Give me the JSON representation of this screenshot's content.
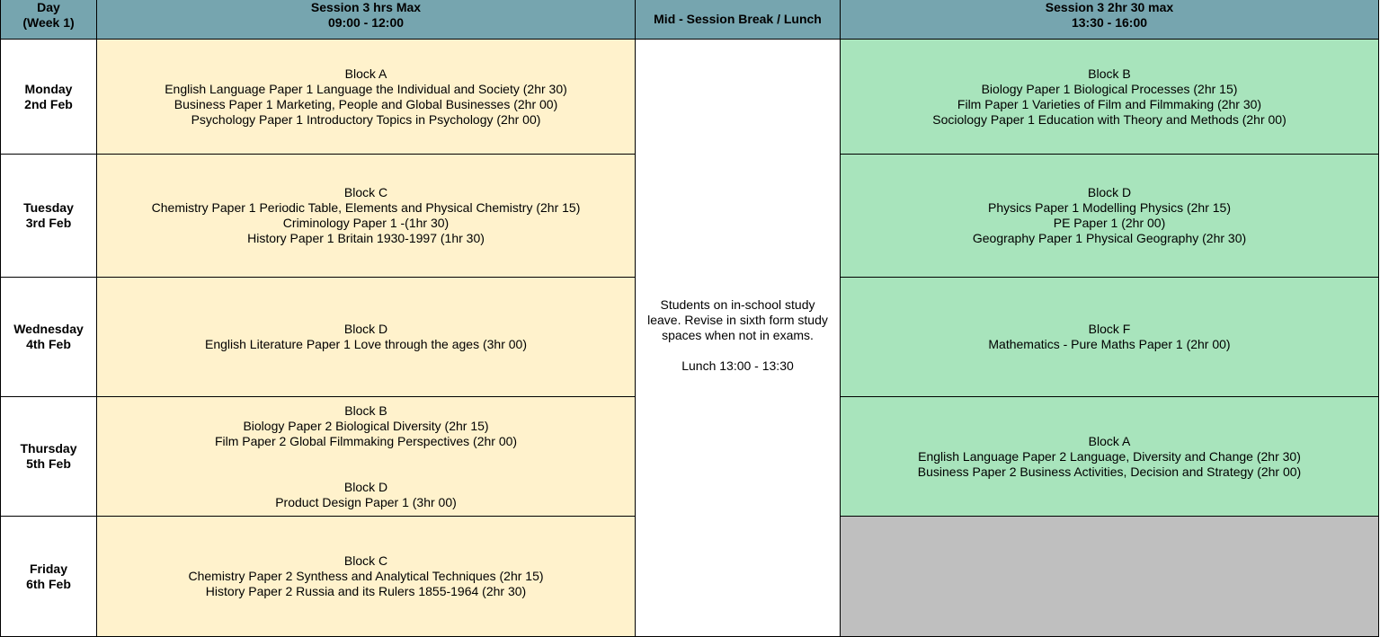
{
  "header": {
    "day": [
      "Day",
      "(Week 1)"
    ],
    "session1": [
      "Session 3 hrs Max",
      "09:00 - 12:00"
    ],
    "break": "Mid - Session Break / Lunch",
    "session2": [
      "Session 3 2hr 30 max",
      "13:30 - 16:00"
    ]
  },
  "break_cell": {
    "lines": [
      "Students on in-school study",
      "leave. Revise in sixth form study",
      "spaces when not in exams."
    ],
    "lunch": "Lunch 13:00 - 13:30"
  },
  "rows": [
    {
      "day": [
        "Monday",
        "2nd Feb"
      ],
      "am": [
        "Block A",
        "English Language Paper 1 Language the Individual and Society (2hr 30)",
        "Business Paper 1 Marketing, People and Global Businesses (2hr 00)",
        "Psychology Paper 1 Introductory Topics in Psychology (2hr 00)"
      ],
      "pm": [
        "Block B",
        "Biology Paper 1 Biological Processes (2hr 15)",
        "Film Paper 1 Varieties of Film and Filmmaking (2hr 30)",
        "Sociology Paper 1 Education with Theory and Methods (2hr 00)"
      ]
    },
    {
      "day": [
        "Tuesday",
        "3rd Feb"
      ],
      "am": [
        "Block C",
        "Chemistry Paper 1  Periodic Table, Elements and Physical Chemistry (2hr 15)",
        "Criminology Paper 1 -(1hr 30)",
        "History Paper 1 Britain 1930-1997 (1hr 30)"
      ],
      "pm": [
        "Block D",
        "Physics Paper 1 Modelling Physics (2hr 15)",
        "PE Paper 1 (2hr 00)",
        "Geography Paper 1  Physical Geography (2hr 30)"
      ]
    },
    {
      "day": [
        "Wednesday",
        "4th Feb"
      ],
      "am": [
        "Block D",
        "English Literature Paper 1 Love through the ages (3hr 00)"
      ],
      "pm": [
        "Block F",
        "Mathematics - Pure Maths Paper 1 (2hr 00)"
      ]
    },
    {
      "day": [
        "Thursday",
        "5th Feb"
      ],
      "am": [
        "Block B",
        "Biology Paper 2  Biological Diversity (2hr 15)",
        "Film Paper 2  Global Filmmaking Perspectives (2hr 00)"
      ],
      "am2": [
        "Block D",
        "Product Design Paper 1 (3hr 00)"
      ],
      "pm": [
        "Block A",
        "English Language Paper 2 Language, Diversity and Change (2hr 30)",
        "Business Paper 2 Business Activities, Decision and Strategy (2hr 00)"
      ]
    },
    {
      "day": [
        "Friday",
        "6th Feb"
      ],
      "am": [
        "Block C",
        "Chemistry Paper 2 Synthess and Analytical Techniques (2hr 15)",
        "History Paper 2  Russia and its Rulers 1855-1964 (2hr 30)"
      ],
      "pm": []
    }
  ],
  "colors": {
    "header": "#76a5af",
    "morning": "#fff2cc",
    "afternoon": "#a8e4bc",
    "empty": "#bfbfbf"
  }
}
